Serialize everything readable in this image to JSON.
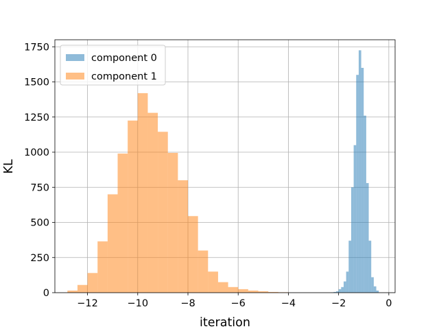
{
  "chart_data": {
    "type": "bar",
    "title": "",
    "xlabel": "iteration",
    "ylabel": "KL",
    "xlim": [
      -13.3,
      0.25
    ],
    "ylim": [
      0,
      1800
    ],
    "xticks": [
      -12,
      -10,
      -8,
      -6,
      -4,
      -2,
      0
    ],
    "xtick_labels": [
      "−12",
      "−10",
      "−8",
      "−6",
      "−4",
      "−2",
      "0"
    ],
    "yticks": [
      0,
      250,
      500,
      750,
      1000,
      1250,
      1500,
      1750
    ],
    "ytick_labels": [
      "0",
      "250",
      "500",
      "750",
      "1000",
      "1250",
      "1500",
      "1750"
    ],
    "grid": true,
    "legend": {
      "placement": "top-left"
    },
    "series": [
      {
        "name": "component 0",
        "color": "#1f77b4",
        "alpha": 0.5,
        "bin_edges": [
          -2.3,
          -2.2,
          -2.1,
          -2.0,
          -1.9,
          -1.8,
          -1.7,
          -1.6,
          -1.5,
          -1.4,
          -1.3,
          -1.2,
          -1.1,
          -1.0,
          -0.9,
          -0.8,
          -0.7,
          -0.6,
          -0.5,
          -0.4
        ],
        "counts": [
          2,
          5,
          10,
          25,
          40,
          80,
          150,
          370,
          750,
          1050,
          1550,
          1725,
          1600,
          1260,
          780,
          370,
          110,
          45,
          15
        ]
      },
      {
        "name": "component 1",
        "color": "#ff7f0e",
        "alpha": 0.5,
        "bin_edges": [
          -12.8,
          -12.4,
          -12.0,
          -11.6,
          -11.2,
          -10.8,
          -10.4,
          -10.0,
          -9.6,
          -9.2,
          -8.8,
          -8.4,
          -8.0,
          -7.6,
          -7.2,
          -6.8,
          -6.4,
          -6.0,
          -5.6,
          -5.2,
          -4.8,
          -4.4,
          -4.0
        ],
        "counts": [
          15,
          55,
          140,
          365,
          700,
          990,
          1225,
          1420,
          1280,
          1145,
          995,
          800,
          545,
          300,
          150,
          75,
          40,
          25,
          15,
          10,
          5,
          3
        ]
      }
    ]
  }
}
